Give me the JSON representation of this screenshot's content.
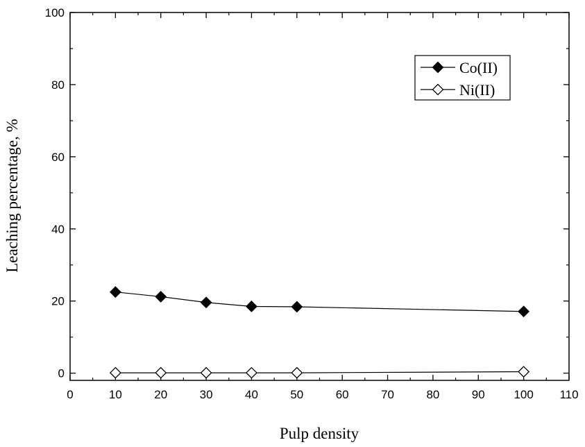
{
  "chart_data": {
    "type": "line",
    "title": "",
    "xlabel": "Pulp density",
    "ylabel": "Leaching percentage, %",
    "xlim": [
      0,
      110
    ],
    "ylim": [
      -2,
      100
    ],
    "x_ticks": [
      0,
      10,
      20,
      30,
      40,
      50,
      60,
      70,
      80,
      90,
      100,
      110
    ],
    "y_ticks": [
      0,
      20,
      40,
      60,
      80,
      100
    ],
    "grid": false,
    "legend_position": "top-right",
    "series": [
      {
        "name": "Co(II)",
        "marker": "filled-diamond",
        "color": "#000000",
        "x": [
          10,
          20,
          30,
          40,
          50,
          100
        ],
        "values": [
          22.5,
          21.2,
          19.6,
          18.5,
          18.4,
          17.1
        ]
      },
      {
        "name": "Ni(II)",
        "marker": "open-diamond",
        "color": "#000000",
        "x": [
          10,
          20,
          30,
          40,
          50,
          100
        ],
        "values": [
          0.1,
          0.1,
          0.1,
          0.1,
          0.1,
          0.4
        ]
      }
    ]
  }
}
